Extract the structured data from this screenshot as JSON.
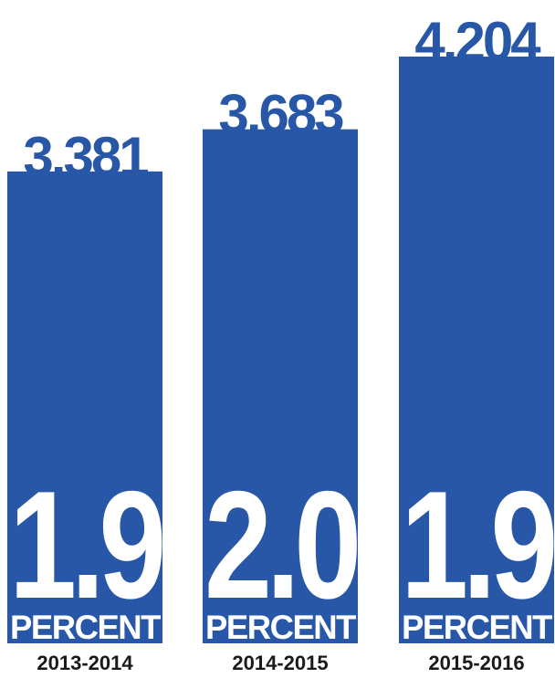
{
  "chart_data": {
    "type": "bar",
    "categories": [
      "2013-2014",
      "2014-2015",
      "2015-2016"
    ],
    "values": [
      3381,
      3683,
      4204
    ],
    "value_labels": [
      "3,381",
      "3,683",
      "4,204"
    ],
    "percent_values": [
      "1.9",
      "2.0",
      "1.9"
    ],
    "percent_unit": "PERCENT",
    "bar_color": "#2757a6",
    "label_color": "#1a1a1a",
    "title": "",
    "xlabel": "",
    "ylabel": "",
    "ylim": [
      0,
      4204
    ],
    "grid": false
  }
}
